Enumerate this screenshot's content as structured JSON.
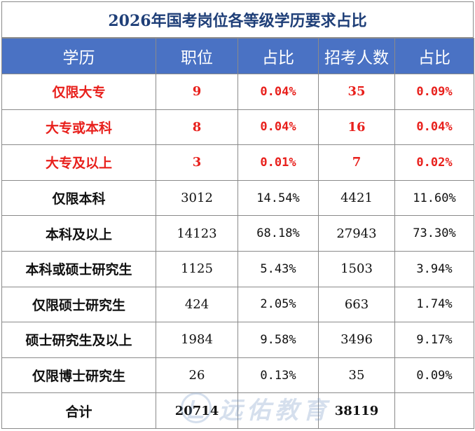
{
  "title": "2026年国考岗位各等级学历要求占比",
  "headers": [
    "学历",
    "职位",
    "占比",
    "招考人数",
    "占比"
  ],
  "rows": [
    {
      "edu": "仅限大专",
      "positions": "9",
      "pos_pct": "0.04%",
      "recruits": "35",
      "rec_pct": "0.09%",
      "highlight": true
    },
    {
      "edu": "大专或本科",
      "positions": "8",
      "pos_pct": "0.04%",
      "recruits": "16",
      "rec_pct": "0.04%",
      "highlight": true
    },
    {
      "edu": "大专及以上",
      "positions": "3",
      "pos_pct": "0.01%",
      "recruits": "7",
      "rec_pct": "0.02%",
      "highlight": true
    },
    {
      "edu": "仅限本科",
      "positions": "3012",
      "pos_pct": "14.54%",
      "recruits": "4421",
      "rec_pct": "11.60%",
      "highlight": false
    },
    {
      "edu": "本科及以上",
      "positions": "14123",
      "pos_pct": "68.18%",
      "recruits": "27943",
      "rec_pct": "73.30%",
      "highlight": false
    },
    {
      "edu": "本科或硕士研究生",
      "positions": "1125",
      "pos_pct": "5.43%",
      "recruits": "1503",
      "rec_pct": "3.94%",
      "highlight": false
    },
    {
      "edu": "仅限硕士研究生",
      "positions": "424",
      "pos_pct": "2.05%",
      "recruits": "663",
      "rec_pct": "1.74%",
      "highlight": false
    },
    {
      "edu": "硕士研究生及以上",
      "positions": "1984",
      "pos_pct": "9.58%",
      "recruits": "3496",
      "rec_pct": "9.17%",
      "highlight": false
    },
    {
      "edu": "仅限博士研究生",
      "positions": "26",
      "pos_pct": "0.13%",
      "recruits": "35",
      "rec_pct": "0.09%",
      "highlight": false
    }
  ],
  "total": {
    "label": "合计",
    "positions": "20714",
    "pos_pct": "",
    "recruits": "38119",
    "rec_pct": ""
  },
  "watermark": "远佑教育",
  "colors": {
    "header_bg": "#4a72c4",
    "title": "#1f3f78",
    "highlight": "#e8201c"
  }
}
